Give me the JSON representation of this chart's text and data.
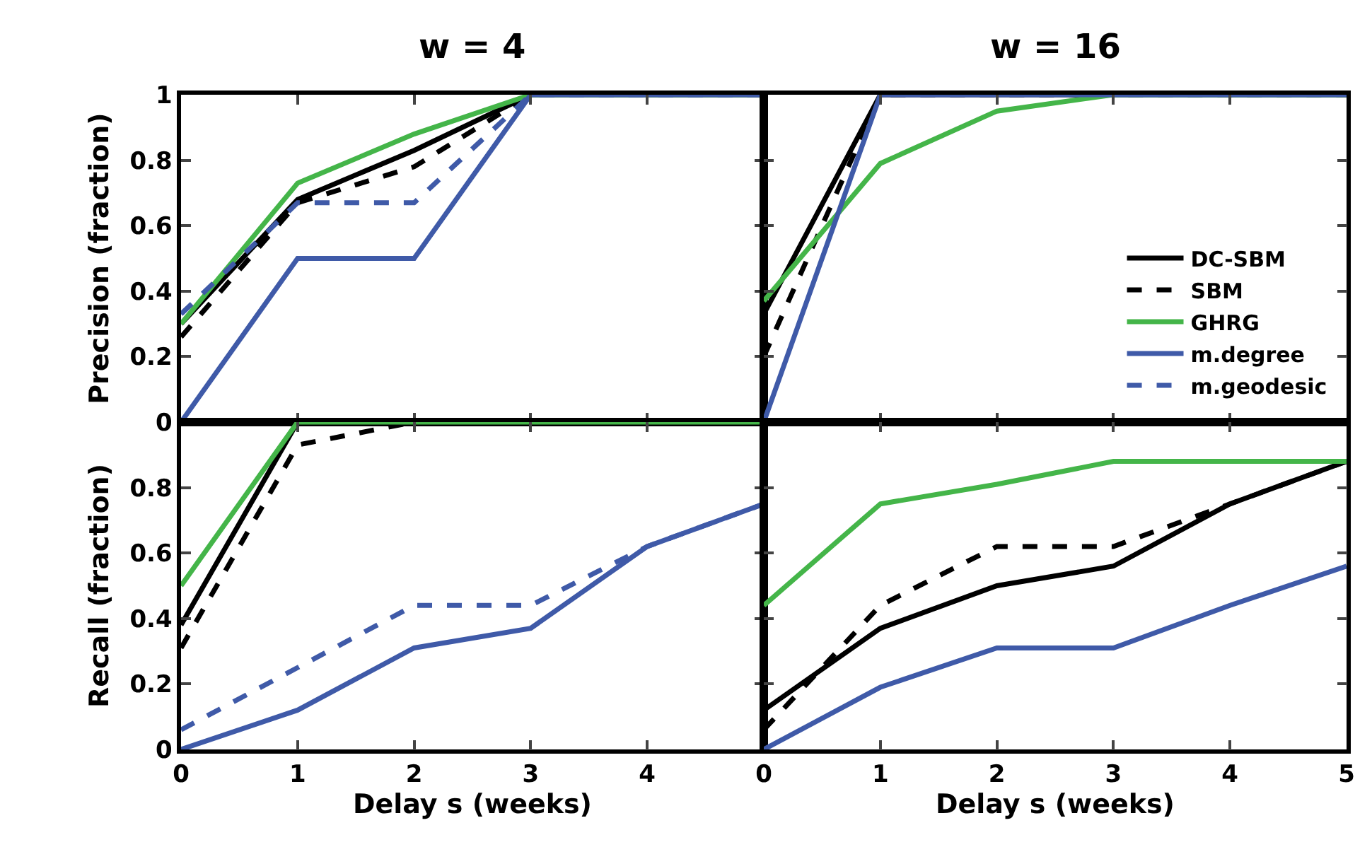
{
  "chart_data": [
    {
      "type": "line",
      "title": "w = 4",
      "ylabel": "Precision (fraction)",
      "x": [
        0,
        1,
        2,
        3,
        4,
        5
      ],
      "xlim": [
        0,
        5
      ],
      "ylim": [
        0,
        1
      ],
      "xticks": [
        0,
        1,
        2,
        3,
        4,
        5
      ],
      "yticks": [
        0,
        0.2,
        0.4,
        0.6,
        0.8,
        1
      ],
      "tick_labels": "y",
      "grid": false,
      "marker": "none",
      "legend": false,
      "series": [
        {
          "color": "#000000",
          "line_style": "solid",
          "values": [
            0.3,
            0.68,
            0.83,
            1,
            1,
            1
          ]
        },
        {
          "color": "#000000",
          "line_style": "dashed",
          "values": [
            0.26,
            0.67,
            0.78,
            1,
            1,
            1
          ]
        },
        {
          "color": "#44b549",
          "line_style": "solid",
          "values": [
            0.3,
            0.73,
            0.88,
            1,
            1,
            1
          ]
        },
        {
          "color": "#3f5aa8",
          "line_style": "solid",
          "values": [
            0,
            0.5,
            0.5,
            1,
            1,
            1
          ]
        },
        {
          "color": "#3f5aa8",
          "line_style": "dashed",
          "values": [
            0.33,
            0.67,
            0.67,
            1,
            1,
            1
          ]
        }
      ]
    },
    {
      "type": "line",
      "title": "w = 16",
      "x": [
        0,
        1,
        2,
        3,
        4,
        5
      ],
      "xlim": [
        0,
        5
      ],
      "ylim": [
        0,
        1
      ],
      "xticks": [
        0,
        1,
        2,
        3,
        4,
        5
      ],
      "yticks": [
        0,
        0.2,
        0.4,
        0.6,
        0.8,
        1
      ],
      "tick_labels": false,
      "grid": false,
      "marker": "none",
      "legend": "bottom right",
      "series": [
        {
          "name": "DC-SBM",
          "color": "#000000",
          "line_style": "solid",
          "values": [
            0.33,
            1,
            1,
            1,
            1,
            1
          ]
        },
        {
          "name": "SBM",
          "color": "#000000",
          "line_style": "dashed",
          "values": [
            0.2,
            1,
            1,
            1,
            1,
            1
          ]
        },
        {
          "name": "GHRG",
          "color": "#44b549",
          "line_style": "solid",
          "values": [
            0.37,
            0.79,
            0.95,
            1,
            1,
            1
          ]
        },
        {
          "name": "m.degree",
          "color": "#3f5aa8",
          "line_style": "solid",
          "values": [
            0,
            1,
            1,
            1,
            1,
            1
          ]
        },
        {
          "name": "m.geodesic",
          "color": "#3f5aa8",
          "line_style": "dashed",
          "values": [
            null,
            null,
            null,
            null,
            null,
            null
          ]
        }
      ]
    },
    {
      "type": "line",
      "xlabel": "Delay s (weeks)",
      "ylabel": "Recall (fraction)",
      "x": [
        0,
        1,
        2,
        3,
        4,
        5
      ],
      "xlim": [
        0,
        5
      ],
      "ylim": [
        0,
        1
      ],
      "xticks": [
        0,
        1,
        2,
        3,
        4,
        {
          "value": 5,
          "label": null
        }
      ],
      "yticks": [
        0,
        0.2,
        0.4,
        0.6,
        0.8,
        {
          "value": 1,
          "label": null
        }
      ],
      "grid": false,
      "marker": "none",
      "legend": false,
      "series": [
        {
          "color": "#000000",
          "line_style": "solid",
          "values": [
            0.38,
            1,
            1,
            1,
            1,
            1
          ]
        },
        {
          "color": "#000000",
          "line_style": "dashed",
          "values": [
            0.31,
            0.93,
            1,
            1,
            1,
            1
          ]
        },
        {
          "color": "#44b549",
          "line_style": "solid",
          "values": [
            0.5,
            1,
            1,
            1,
            1,
            1
          ]
        },
        {
          "color": "#3f5aa8",
          "line_style": "solid",
          "values": [
            0,
            0.12,
            0.31,
            0.37,
            0.62,
            0.75
          ]
        },
        {
          "color": "#3f5aa8",
          "line_style": "dashed",
          "values": [
            0.06,
            0.25,
            0.44,
            0.44,
            0.62,
            0.75
          ]
        }
      ]
    },
    {
      "type": "line",
      "xlabel": "Delay s (weeks)",
      "x": [
        0,
        1,
        2,
        3,
        4,
        5
      ],
      "xlim": [
        0,
        5
      ],
      "ylim": [
        0,
        1
      ],
      "xticks": [
        0,
        1,
        2,
        3,
        4,
        5
      ],
      "yticks": [
        0,
        0.2,
        0.4,
        0.6,
        0.8,
        1
      ],
      "tick_labels": "x",
      "grid": false,
      "marker": "none",
      "legend": false,
      "series": [
        {
          "color": "#000000",
          "line_style": "solid",
          "values": [
            0.12,
            0.37,
            0.5,
            0.56,
            0.75,
            0.88
          ]
        },
        {
          "color": "#000000",
          "line_style": "dashed",
          "values": [
            0.06,
            0.44,
            0.62,
            0.62,
            0.75,
            0.88
          ]
        },
        {
          "color": "#44b549",
          "line_style": "solid",
          "values": [
            0.44,
            0.75,
            0.81,
            0.88,
            0.88,
            0.88
          ]
        },
        {
          "color": "#3f5aa8",
          "line_style": "solid",
          "values": [
            0,
            0.19,
            0.31,
            0.31,
            0.44,
            0.56
          ]
        }
      ]
    }
  ]
}
